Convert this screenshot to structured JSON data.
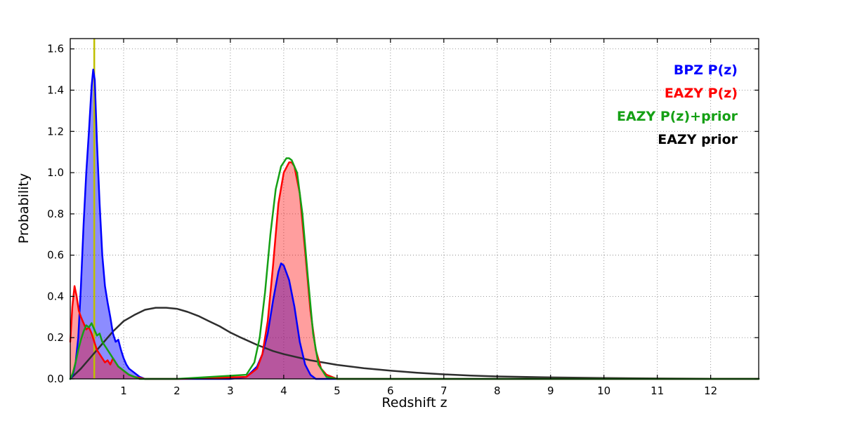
{
  "chart_data": {
    "type": "line",
    "title": "",
    "xlabel": "Redshift z",
    "ylabel": "Probability",
    "xlim": [
      0,
      12.9
    ],
    "ylim": [
      0,
      1.65
    ],
    "xticks": [
      1,
      2,
      3,
      4,
      5,
      6,
      7,
      8,
      9,
      10,
      11,
      12
    ],
    "yticks": [
      0.0,
      0.2,
      0.4,
      0.6,
      0.8,
      1.0,
      1.2,
      1.4,
      1.6
    ],
    "grid": true,
    "grid_style": "dotted",
    "legend_position": "top-right-inside",
    "frame_color": "#000000",
    "marker_line": {
      "x": 0.45,
      "color": "#bfbf00",
      "width": 2.5,
      "name": "spec-z-marker"
    },
    "stroke_draw_order": [
      3,
      0,
      1,
      2
    ],
    "series": [
      {
        "name": "BPZ P(z)",
        "color": "#0000ff",
        "fill": true,
        "fill_opacity": 0.45,
        "x": [
          0.0,
          0.05,
          0.1,
          0.15,
          0.2,
          0.25,
          0.3,
          0.35,
          0.4,
          0.43,
          0.46,
          0.5,
          0.55,
          0.6,
          0.65,
          0.7,
          0.75,
          0.8,
          0.85,
          0.9,
          0.95,
          1.0,
          1.05,
          1.1,
          1.2,
          1.3,
          1.4,
          1.6,
          2.0,
          3.0,
          3.3,
          3.5,
          3.6,
          3.7,
          3.8,
          3.9,
          3.95,
          4.0,
          4.1,
          4.2,
          4.3,
          4.4,
          4.5,
          4.6,
          5.0,
          12.9
        ],
        "y": [
          0.0,
          0.02,
          0.08,
          0.2,
          0.45,
          0.75,
          1.0,
          1.2,
          1.42,
          1.5,
          1.45,
          1.15,
          0.85,
          0.6,
          0.45,
          0.37,
          0.3,
          0.22,
          0.18,
          0.19,
          0.14,
          0.1,
          0.07,
          0.05,
          0.03,
          0.01,
          0.0,
          0.0,
          0.0,
          0.0,
          0.01,
          0.06,
          0.12,
          0.22,
          0.38,
          0.52,
          0.56,
          0.55,
          0.48,
          0.35,
          0.18,
          0.07,
          0.02,
          0.0,
          0.0,
          0.0
        ]
      },
      {
        "name": "EAZY P(z)",
        "color": "#ff0000",
        "fill": true,
        "fill_opacity": 0.38,
        "x": [
          0.0,
          0.04,
          0.08,
          0.12,
          0.16,
          0.2,
          0.25,
          0.3,
          0.35,
          0.4,
          0.45,
          0.5,
          0.55,
          0.6,
          0.65,
          0.7,
          0.75,
          0.8,
          0.85,
          0.9,
          0.95,
          1.0,
          1.1,
          1.2,
          1.4,
          2.0,
          3.3,
          3.5,
          3.6,
          3.7,
          3.8,
          3.9,
          4.0,
          4.1,
          4.15,
          4.2,
          4.3,
          4.4,
          4.5,
          4.6,
          4.7,
          4.8,
          5.0,
          12.9
        ],
        "y": [
          0.18,
          0.35,
          0.45,
          0.4,
          0.33,
          0.3,
          0.27,
          0.24,
          0.25,
          0.22,
          0.18,
          0.14,
          0.12,
          0.1,
          0.08,
          0.09,
          0.07,
          0.1,
          0.08,
          0.06,
          0.05,
          0.04,
          0.02,
          0.01,
          0.0,
          0.0,
          0.01,
          0.05,
          0.12,
          0.28,
          0.55,
          0.85,
          1.0,
          1.05,
          1.05,
          1.03,
          0.9,
          0.62,
          0.33,
          0.14,
          0.05,
          0.02,
          0.0,
          0.0
        ]
      },
      {
        "name": "EAZY P(z)+prior",
        "color": "#15a015",
        "fill": false,
        "fill_opacity": 0,
        "x": [
          0.0,
          0.05,
          0.1,
          0.15,
          0.2,
          0.25,
          0.3,
          0.35,
          0.4,
          0.45,
          0.5,
          0.55,
          0.6,
          0.65,
          0.7,
          0.75,
          0.8,
          0.85,
          0.9,
          1.0,
          1.1,
          1.3,
          2.0,
          3.3,
          3.45,
          3.55,
          3.65,
          3.75,
          3.85,
          3.95,
          4.05,
          4.1,
          4.15,
          4.25,
          4.35,
          4.45,
          4.55,
          4.65,
          4.8,
          5.0,
          12.9
        ],
        "y": [
          0.0,
          0.03,
          0.08,
          0.14,
          0.19,
          0.23,
          0.26,
          0.25,
          0.27,
          0.24,
          0.21,
          0.22,
          0.18,
          0.16,
          0.14,
          0.12,
          0.1,
          0.08,
          0.06,
          0.04,
          0.02,
          0.0,
          0.0,
          0.02,
          0.08,
          0.2,
          0.42,
          0.7,
          0.92,
          1.03,
          1.07,
          1.07,
          1.06,
          1.0,
          0.8,
          0.5,
          0.22,
          0.07,
          0.01,
          0.0,
          0.0
        ]
      },
      {
        "name": "EAZY prior",
        "color": "#2e2e2e",
        "fill": false,
        "fill_opacity": 0,
        "x": [
          0.0,
          0.2,
          0.4,
          0.6,
          0.8,
          1.0,
          1.2,
          1.4,
          1.6,
          1.8,
          2.0,
          2.2,
          2.4,
          2.6,
          2.8,
          3.0,
          3.2,
          3.5,
          3.8,
          4.0,
          4.5,
          5.0,
          5.5,
          6.0,
          6.5,
          7.0,
          7.5,
          8.0,
          9.0,
          10.0,
          11.0,
          12.0,
          12.9
        ],
        "y": [
          0.0,
          0.05,
          0.11,
          0.17,
          0.23,
          0.28,
          0.31,
          0.335,
          0.345,
          0.345,
          0.34,
          0.325,
          0.305,
          0.28,
          0.255,
          0.225,
          0.2,
          0.165,
          0.135,
          0.12,
          0.09,
          0.068,
          0.052,
          0.04,
          0.03,
          0.022,
          0.016,
          0.012,
          0.007,
          0.004,
          0.002,
          0.001,
          0.001
        ]
      }
    ],
    "legend_entries": [
      {
        "label": "BPZ P(z)",
        "color": "#0000ff"
      },
      {
        "label": "EAZY P(z)",
        "color": "#ff0000"
      },
      {
        "label": "EAZY P(z)+prior",
        "color": "#15a015"
      },
      {
        "label": "EAZY prior",
        "color": "#000000"
      }
    ]
  }
}
